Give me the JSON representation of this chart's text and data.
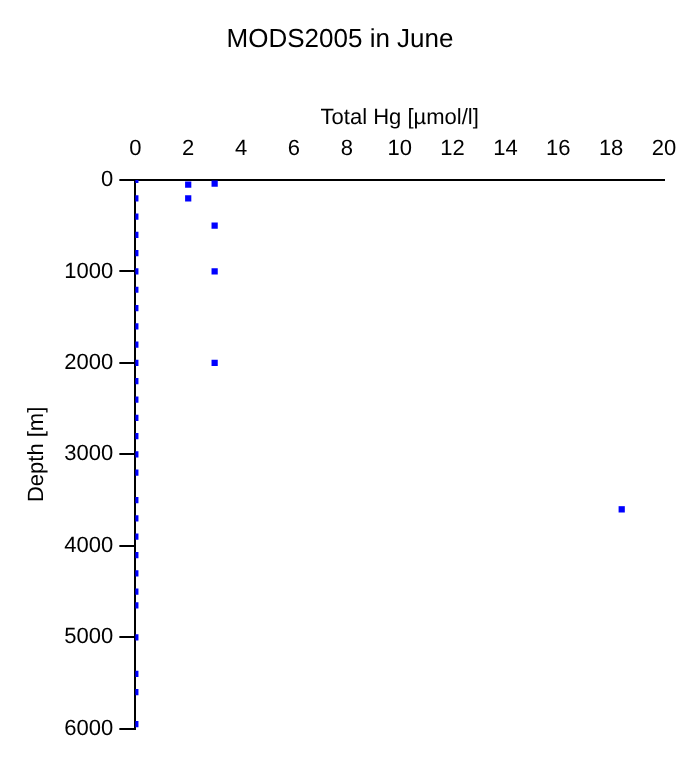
{
  "chart_data": {
    "type": "scatter",
    "title": "MODS2005 in June",
    "xlabel": "Total Hg [µmol/l]",
    "ylabel": "Depth [m]",
    "x": [
      0,
      0,
      0,
      0,
      0,
      0,
      0,
      0,
      0,
      0,
      0,
      0,
      0,
      0,
      0,
      0,
      0,
      0,
      0,
      0,
      0,
      0,
      0,
      0,
      0,
      0,
      0,
      0,
      2,
      2,
      3,
      3,
      3,
      3,
      18.4
    ],
    "series": [
      {
        "color": "#0000ff",
        "values": [
          0,
          200,
          400,
          600,
          800,
          1000,
          1200,
          1400,
          1600,
          1800,
          2000,
          2200,
          2400,
          2600,
          2800,
          3000,
          3200,
          3500,
          3700,
          3900,
          4100,
          4300,
          4500,
          4650,
          5000,
          5400,
          5600,
          5950,
          50,
          200,
          40,
          500,
          1000,
          2000,
          3600
        ]
      }
    ],
    "xlim": [
      0,
      20
    ],
    "xticks": [
      0,
      2,
      4,
      6,
      8,
      10,
      12,
      14,
      16,
      18,
      20
    ],
    "ylim": [
      6000,
      0
    ],
    "yticks": [
      0,
      1000,
      2000,
      3000,
      4000,
      5000,
      6000
    ],
    "marker": "square",
    "grid": false,
    "legend": false
  }
}
